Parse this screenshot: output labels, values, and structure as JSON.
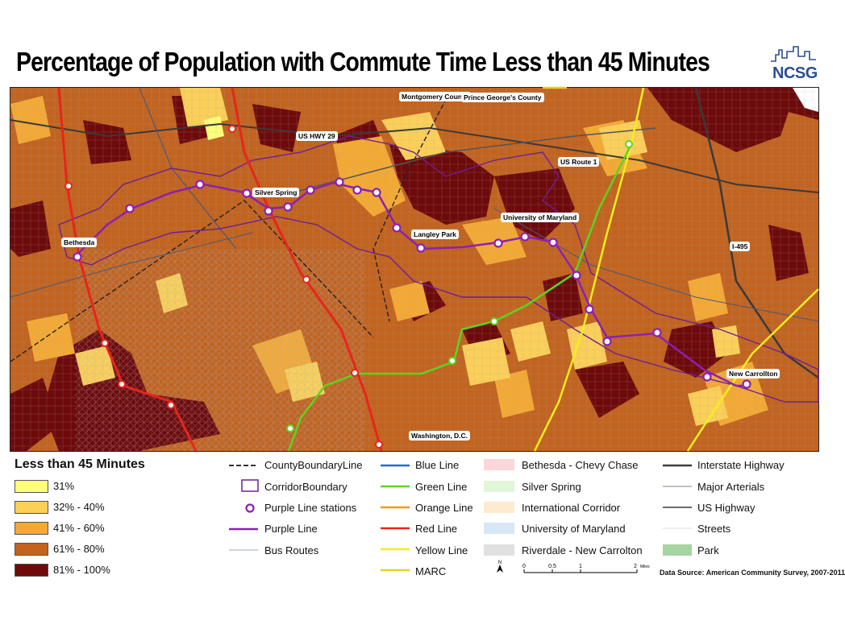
{
  "title": "Percentage of Population with Commute Time Less than 45 Minutes",
  "logo": {
    "text": "NCSG",
    "color": "#2c4e93"
  },
  "map_labels": [
    {
      "key": "montgomery",
      "text": "Montgomery County"
    },
    {
      "key": "princegeorges",
      "text": "Prince George's County"
    },
    {
      "key": "us29",
      "text": "US HWY 29"
    },
    {
      "key": "route1",
      "text": "US Route 1"
    },
    {
      "key": "silverspring",
      "text": "Silver Spring"
    },
    {
      "key": "bethesda",
      "text": "Bethesda"
    },
    {
      "key": "langley",
      "text": "Langley Park"
    },
    {
      "key": "umd",
      "text": "University of Maryland"
    },
    {
      "key": "i495",
      "text": "I-495"
    },
    {
      "key": "newcarrollton",
      "text": "New Carrollton"
    },
    {
      "key": "dc",
      "text": "Washington, D.C."
    }
  ],
  "legend": {
    "heading": "Less than 45 Minutes",
    "classes": [
      {
        "label": "31%",
        "color": "#fefe7a"
      },
      {
        "label": "32% - 40%",
        "color": "#fbcf58"
      },
      {
        "label": "41% - 60%",
        "color": "#f3a934"
      },
      {
        "label": "61% - 80%",
        "color": "#c2631f"
      },
      {
        "label": "81% - 100%",
        "color": "#6e0a0a"
      }
    ],
    "col2": [
      "CountyBoundaryLine",
      "CorridorBoundary",
      "Purple Line stations",
      "Purple Line",
      "Bus Routes"
    ],
    "col3": [
      {
        "label": "Blue Line",
        "color": "#1f6fd1"
      },
      {
        "label": "Green Line",
        "color": "#5ad61e"
      },
      {
        "label": "Orange Line",
        "color": "#f29a1c"
      },
      {
        "label": "Red Line",
        "color": "#e8251c"
      },
      {
        "label": "Yellow Line",
        "color": "#f3ee1e"
      },
      {
        "label": "MARC",
        "color": "#e2d31c"
      }
    ],
    "col4": [
      {
        "label": "Bethesda - Chevy Chase",
        "color": "#fcd7d9"
      },
      {
        "label": "Silver Spring",
        "color": "#dff6d8"
      },
      {
        "label": "International Corridor",
        "color": "#fdebd0"
      },
      {
        "label": "University of Maryland",
        "color": "#d7e7f8"
      },
      {
        "label": "Riverdale - New Carrolton",
        "color": "#e0e0e0"
      }
    ],
    "col5": [
      "Interstate Highway",
      "Major Arterials",
      "US Highway",
      "Streets",
      "Park"
    ],
    "park_color": "#a6d4a2"
  },
  "scale_bar": {
    "ticks": [
      "0",
      "0.5",
      "1",
      "2"
    ],
    "unit": "Miles",
    "north": "N"
  },
  "source": "Data Source: American Community Survey, 2007-2011"
}
